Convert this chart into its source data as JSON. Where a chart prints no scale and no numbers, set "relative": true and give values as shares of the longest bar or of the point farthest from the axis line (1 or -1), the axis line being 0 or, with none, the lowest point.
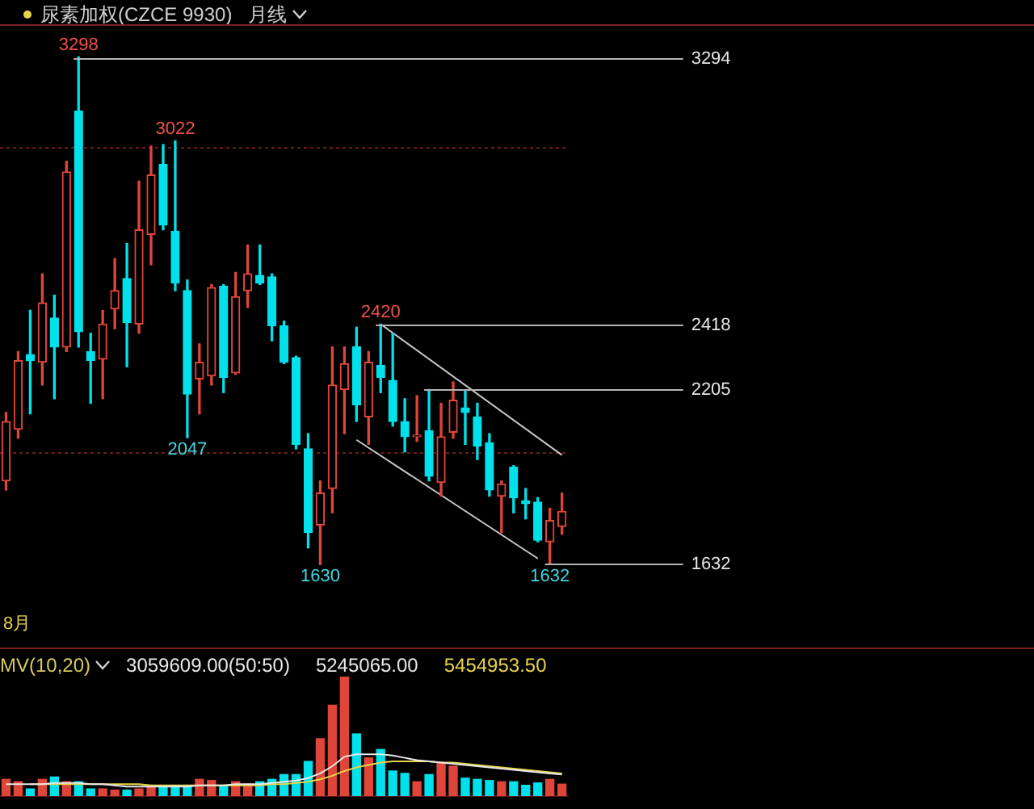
{
  "chart_data": [
    {
      "type": "candlestick",
      "title": "尿素加权(CZCE 9930)",
      "subtitle": "月线",
      "categories": [
        null,
        null,
        null,
        null,
        null,
        null,
        null,
        null,
        null,
        null,
        null,
        null,
        null,
        null,
        null,
        null,
        null,
        null,
        null,
        null,
        null,
        null,
        null,
        null,
        null,
        null,
        null,
        null,
        null,
        null,
        null,
        null,
        null,
        null,
        null,
        null,
        null,
        null,
        null,
        null,
        null,
        null,
        null,
        null,
        null,
        null,
        null
      ],
      "ohlc": [
        [
          1905,
          2130,
          1875,
          2100
        ],
        [
          2075,
          2330,
          2045,
          2300
        ],
        [
          2320,
          2465,
          2125,
          2300
        ],
        [
          2295,
          2585,
          2220,
          2490
        ],
        [
          2440,
          2515,
          2175,
          2345
        ],
        [
          2345,
          2955,
          2330,
          2920
        ],
        [
          3120,
          3298,
          2345,
          2395
        ],
        [
          2330,
          2390,
          2160,
          2300
        ],
        [
          2305,
          2465,
          2175,
          2420
        ],
        [
          2470,
          2635,
          2405,
          2530
        ],
        [
          2570,
          2685,
          2280,
          2425
        ],
        [
          2420,
          2890,
          2390,
          2730
        ],
        [
          2715,
          3005,
          2615,
          2910
        ],
        [
          2945,
          3010,
          2730,
          2745
        ],
        [
          2725,
          3022,
          2530,
          2555
        ],
        [
          2530,
          2565,
          2047,
          2190
        ],
        [
          2240,
          2355,
          2125,
          2295
        ],
        [
          2250,
          2550,
          2220,
          2540
        ],
        [
          2545,
          2550,
          2195,
          2245
        ],
        [
          2260,
          2590,
          2255,
          2510
        ],
        [
          2530,
          2680,
          2475,
          2585
        ],
        [
          2580,
          2680,
          2550,
          2555
        ],
        [
          2575,
          2585,
          2365,
          2415
        ],
        [
          2415,
          2430,
          2290,
          2295
        ],
        [
          2310,
          2315,
          2010,
          2025
        ],
        [
          2010,
          2060,
          1685,
          1735
        ],
        [
          1760,
          1905,
          1630,
          1865
        ],
        [
          1880,
          2345,
          1800,
          2220
        ],
        [
          2205,
          2345,
          2060,
          2290
        ],
        [
          2345,
          2410,
          2100,
          2155
        ],
        [
          2115,
          2330,
          2025,
          2295
        ],
        [
          2285,
          2420,
          2195,
          2245
        ],
        [
          2235,
          2390,
          2085,
          2100
        ],
        [
          2100,
          2175,
          2000,
          2050
        ],
        [
          2050,
          2185,
          2035,
          2055
        ],
        [
          2070,
          2205,
          1905,
          1920
        ],
        [
          1900,
          2160,
          1855,
          2050
        ],
        [
          2065,
          2230,
          2045,
          2170
        ],
        [
          2145,
          2200,
          2025,
          2130
        ],
        [
          2115,
          2160,
          1975,
          2020
        ],
        [
          2030,
          2060,
          1855,
          1875
        ],
        [
          1855,
          1905,
          1735,
          1895
        ],
        [
          1950,
          1955,
          1800,
          1850
        ],
        [
          1840,
          1880,
          1780,
          1830
        ],
        [
          1835,
          1850,
          1705,
          1710
        ],
        [
          1705,
          1815,
          1632,
          1775
        ],
        [
          1755,
          1865,
          1730,
          1805
        ]
      ],
      "colors": [
        "#e0453a",
        "#e0453a",
        "#00e1ec",
        "#e0453a",
        "#00e1ec",
        "#e0453a",
        "#00e1ec",
        "#00e1ec",
        "#e0453a",
        "#e0453a",
        "#00e1ec",
        "#e0453a",
        "#e0453a",
        "#00e1ec",
        "#00e1ec",
        "#00e1ec",
        "#e0453a",
        "#e0453a",
        "#00e1ec",
        "#e0453a",
        "#e0453a",
        "#00e1ec",
        "#00e1ec",
        "#00e1ec",
        "#00e1ec",
        "#00e1ec",
        "#e0453a",
        "#e0453a",
        "#e0453a",
        "#00e1ec",
        "#e0453a",
        "#00e1ec",
        "#00e1ec",
        "#00e1ec",
        "#e0453a",
        "#00e1ec",
        "#e0453a",
        "#e0453a",
        "#00e1ec",
        "#00e1ec",
        "#00e1ec",
        "#e0453a",
        "#00e1ec",
        "#00e1ec",
        "#00e1ec",
        "#e0453a",
        "#e0453a"
      ],
      "series": [
        {
          "type": "line",
          "color": "#c8c8c8",
          "values": [
            null,
            null,
            null,
            null,
            null,
            null,
            null,
            null,
            null,
            null,
            null,
            null,
            null,
            null,
            null,
            null,
            null,
            null,
            null,
            null,
            null,
            null,
            null,
            null,
            null,
            null,
            null,
            null,
            null,
            null,
            null,
            2420,
            null,
            null,
            null,
            null,
            null,
            null,
            null,
            null,
            null,
            null,
            null,
            null,
            null,
            null,
            1990
          ]
        },
        {
          "type": "line",
          "color": "#c8c8c8",
          "values": [
            null,
            null,
            null,
            null,
            null,
            null,
            null,
            null,
            null,
            null,
            null,
            null,
            null,
            null,
            null,
            null,
            null,
            null,
            null,
            null,
            null,
            null,
            null,
            null,
            null,
            null,
            null,
            null,
            null,
            2040,
            null,
            null,
            null,
            null,
            null,
            null,
            null,
            null,
            null,
            null,
            null,
            null,
            null,
            null,
            1650,
            null,
            null
          ]
        }
      ],
      "yticks": [
        {
          "value": 3000,
          "label": null
        },
        {
          "value": 2000,
          "label": null
        }
      ],
      "grid": "y",
      "ref_lines": [
        {
          "axis": "y",
          "value": 3294,
          "label": "3294"
        },
        {
          "axis": "y",
          "value": 2418,
          "label": "2418"
        },
        {
          "axis": "y",
          "value": 2205,
          "label": "2205"
        },
        {
          "axis": "y",
          "value": 1632,
          "label": "1632"
        }
      ],
      "annotations": [
        {
          "text": "3298",
          "y": 3298
        },
        {
          "text": "3022",
          "y": 3022
        },
        {
          "text": "2047",
          "y": 2047
        },
        {
          "text": "2420",
          "y": 2420
        },
        {
          "text": "1630",
          "y": 1630
        },
        {
          "text": "1632",
          "y": 1632
        },
        "8月"
      ]
    },
    {
      "type": "bar",
      "relative": true,
      "title": "MV(10,20)",
      "categories": [
        null,
        null,
        null,
        null,
        null,
        null,
        null,
        null,
        null,
        null,
        null,
        null,
        null,
        null,
        null,
        null,
        null,
        null,
        null,
        null,
        null,
        null,
        null,
        null,
        null,
        null,
        null,
        null,
        null,
        null,
        null,
        null,
        null,
        null,
        null,
        null,
        null,
        null,
        null,
        null,
        null,
        null,
        null,
        null,
        null,
        null,
        null
      ],
      "series": [
        {
          "values": [
            0.14,
            0.12,
            0.06,
            0.14,
            0.16,
            0.12,
            0.12,
            0.06,
            0.06,
            0.05,
            0.05,
            0.06,
            0.08,
            0.08,
            0.09,
            0.08,
            0.14,
            0.13,
            0.09,
            0.12,
            0.1,
            0.12,
            0.14,
            0.18,
            0.18,
            0.29,
            0.48,
            0.76,
            1,
            0.52,
            0.32,
            0.39,
            0.21,
            0.19,
            0.12,
            0.18,
            0.28,
            0.25,
            0.15,
            0.14,
            0.13,
            0.12,
            0.12,
            0.09,
            0.11,
            0.14,
            0.1
          ],
          "colors": [
            "#e0453a",
            "#e0453a",
            "#00e1ec",
            "#e0453a",
            "#00e1ec",
            "#e0453a",
            "#00e1ec",
            "#00e1ec",
            "#e0453a",
            "#e0453a",
            "#00e1ec",
            "#e0453a",
            "#e0453a",
            "#00e1ec",
            "#00e1ec",
            "#00e1ec",
            "#e0453a",
            "#e0453a",
            "#00e1ec",
            "#e0453a",
            "#e0453a",
            "#00e1ec",
            "#00e1ec",
            "#00e1ec",
            "#00e1ec",
            "#00e1ec",
            "#e0453a",
            "#e0453a",
            "#e0453a",
            "#00e1ec",
            "#e0453a",
            "#00e1ec",
            "#00e1ec",
            "#00e1ec",
            "#e0453a",
            "#00e1ec",
            "#e0453a",
            "#e0453a",
            "#00e1ec",
            "#00e1ec",
            "#00e1ec",
            "#e0453a",
            "#00e1ec",
            "#00e1ec",
            "#00e1ec",
            "#e0453a",
            "#e0453a"
          ]
        },
        {
          "type": "line",
          "color": "#e8e8e8",
          "values": [
            0.1,
            0.1,
            0.1,
            0.1,
            0.11,
            0.11,
            0.11,
            0.1,
            0.1,
            0.09,
            0.08,
            0.08,
            0.08,
            0.08,
            0.08,
            0.08,
            0.09,
            0.09,
            0.09,
            0.1,
            0.1,
            0.1,
            0.11,
            0.12,
            0.13,
            0.15,
            0.19,
            0.25,
            0.33,
            0.35,
            0.35,
            0.35,
            0.34,
            0.32,
            0.3,
            0.29,
            0.28,
            0.27,
            0.26,
            0.25,
            0.24,
            0.23,
            0.22,
            0.21,
            0.2,
            0.19,
            0.18
          ]
        },
        {
          "type": "line",
          "color": "#e8d44a",
          "values": [
            null,
            null,
            0.1,
            0.1,
            0.1,
            0.1,
            0.1,
            0.1,
            0.1,
            0.1,
            0.1,
            0.1,
            0.09,
            0.09,
            0.09,
            0.09,
            0.09,
            0.09,
            0.09,
            0.09,
            0.09,
            0.09,
            0.1,
            0.1,
            0.11,
            0.12,
            0.14,
            0.17,
            0.21,
            0.24,
            0.26,
            0.28,
            0.29,
            0.29,
            0.29,
            0.29,
            0.28,
            0.28,
            0.27,
            0.26,
            0.25,
            0.24,
            0.23,
            0.22,
            0.21,
            0.2,
            0.19
          ]
        }
      ],
      "annotations": [
        "3059609.00(50:50)",
        "5245065.00",
        "5454953.50"
      ]
    }
  ]
}
